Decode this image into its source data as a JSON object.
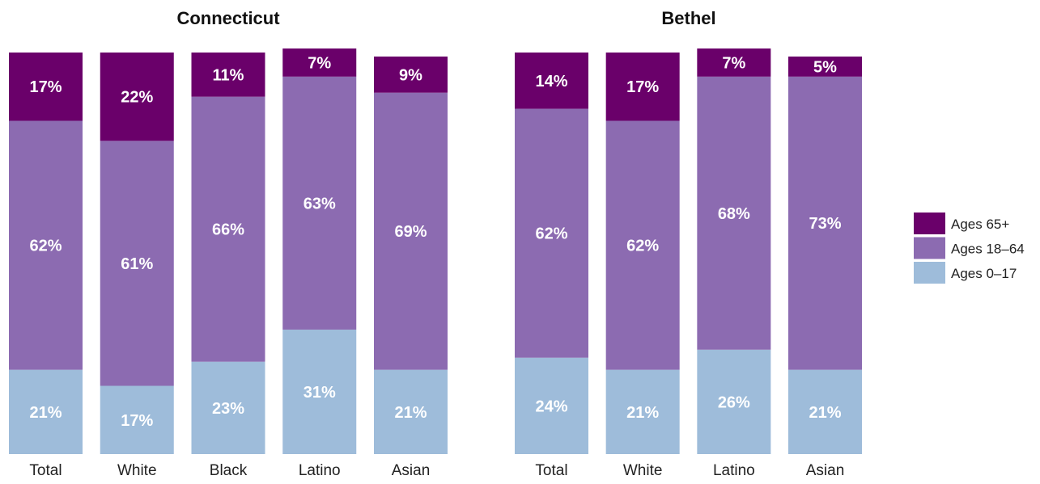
{
  "legend": [
    {
      "key": "65plus",
      "label": "Ages 65+",
      "color": "#6a006a"
    },
    {
      "key": "18to64",
      "label": "Ages 18–64",
      "color": "#8c6bb1"
    },
    {
      "key": "0to17",
      "label": "Ages 0–17",
      "color": "#9ebcda"
    }
  ],
  "chart_data": [
    {
      "type": "bar",
      "stacked": true,
      "title": "Connecticut",
      "categories": [
        "Total",
        "White",
        "Black",
        "Latino",
        "Asian"
      ],
      "ylim": [
        0,
        100
      ],
      "series": [
        {
          "name": "Ages 0–17",
          "key": "0to17",
          "values": [
            21,
            17,
            23,
            31,
            21
          ],
          "labels": [
            "21%",
            "17%",
            "23%",
            "31%",
            "21%"
          ]
        },
        {
          "name": "Ages 18–64",
          "key": "18to64",
          "values": [
            62,
            61,
            66,
            63,
            69
          ],
          "labels": [
            "62%",
            "61%",
            "66%",
            "63%",
            "69%"
          ]
        },
        {
          "name": "Ages 65+",
          "key": "65plus",
          "values": [
            17,
            22,
            11,
            7,
            9
          ],
          "labels": [
            "17%",
            "22%",
            "11%",
            "7%",
            "9%"
          ]
        }
      ]
    },
    {
      "type": "bar",
      "stacked": true,
      "title": "Bethel",
      "categories": [
        "Total",
        "White",
        "Latino",
        "Asian"
      ],
      "ylim": [
        0,
        100
      ],
      "series": [
        {
          "name": "Ages 0–17",
          "key": "0to17",
          "values": [
            24,
            21,
            26,
            21
          ],
          "labels": [
            "24%",
            "21%",
            "26%",
            "21%"
          ]
        },
        {
          "name": "Ages 18–64",
          "key": "18to64",
          "values": [
            62,
            62,
            68,
            73
          ],
          "labels": [
            "62%",
            "62%",
            "68%",
            "73%"
          ]
        },
        {
          "name": "Ages 65+",
          "key": "65plus",
          "values": [
            14,
            17,
            7,
            5
          ],
          "labels": [
            "14%",
            "17%",
            "7%",
            "5%"
          ]
        }
      ]
    }
  ]
}
